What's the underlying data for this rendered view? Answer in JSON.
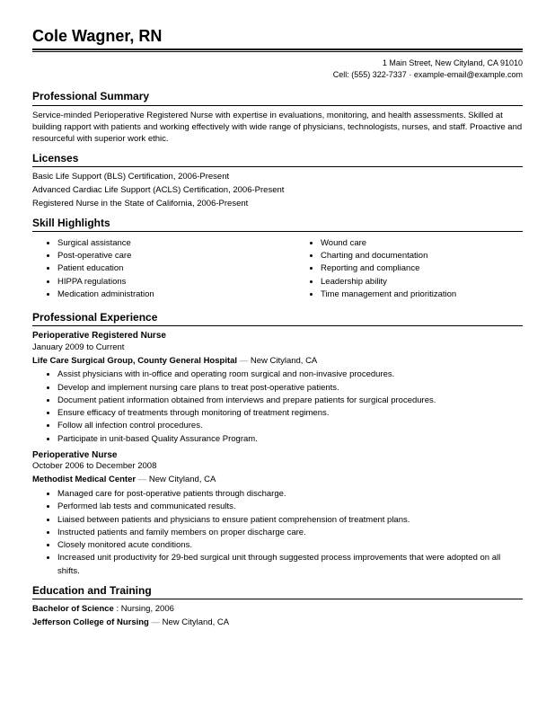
{
  "name": "Cole Wagner, RN",
  "contact": {
    "address": "1 Main Street, New Cityland, CA 91010",
    "phone_email": "Cell: (555) 322-7337 · example-email@example.com"
  },
  "summary": {
    "heading": "Professional Summary",
    "text": "Service-minded Perioperative Registered Nurse with expertise in evaluations, monitoring, and health assessments. Skilled at building rapport with patients and working effectively with wide range of physicians, technologists, nurses, and staff. Proactive and resourceful with superior work ethic."
  },
  "licenses": {
    "heading": "Licenses",
    "items": [
      "Basic Life Support (BLS) Certification, 2006-Present",
      "Advanced Cardiac Life Support (ACLS) Certification, 2006-Present",
      "Registered Nurse in the State of California, 2006-Present"
    ]
  },
  "skills": {
    "heading": "Skill Highlights",
    "col1": [
      "Surgical assistance",
      "Post-operative care",
      "Patient education",
      "HIPPA regulations",
      "Medication administration"
    ],
    "col2": [
      "Wound care",
      "Charting and documentation",
      "Reporting and compliance",
      "Leadership ability",
      "Time management and prioritization"
    ]
  },
  "experience": {
    "heading": "Professional Experience",
    "jobs": [
      {
        "title": "Perioperative Registered Nurse",
        "dates": "January 2009 to Current",
        "employer": "Life Care Surgical Group, County General Hospital",
        "location": "New Cityland, CA",
        "bullets": [
          "Assist physicians with in-office and operating room surgical and non-invasive procedures.",
          "Develop and implement nursing care plans to treat post-operative patients.",
          "Document patient information obtained from interviews and prepare patients for surgical procedures.",
          "Ensure efficacy of treatments through monitoring of treatment regimens.",
          "Follow all infection control procedures.",
          "Participate in unit-based Quality Assurance Program."
        ]
      },
      {
        "title": "Perioperative Nurse",
        "dates": "October 2006 to December 2008",
        "employer": "Methodist Medical Center",
        "location": "New Cityland, CA",
        "bullets": [
          "Managed care for post-operative patients through discharge.",
          "Performed lab tests and communicated results.",
          "Liaised between patients and physicians to ensure patient comprehension of treatment plans.",
          "Instructed patients and family members on proper discharge care.",
          "Closely monitored acute conditions.",
          "Increased unit productivity for 29-bed surgical unit through suggested process improvements that were adopted on all shifts."
        ]
      }
    ]
  },
  "education": {
    "heading": "Education and Training",
    "degree": "Bachelor of Science",
    "field": "Nursing, 2006",
    "school": "Jefferson College of Nursing",
    "location": "New Cityland, CA"
  }
}
